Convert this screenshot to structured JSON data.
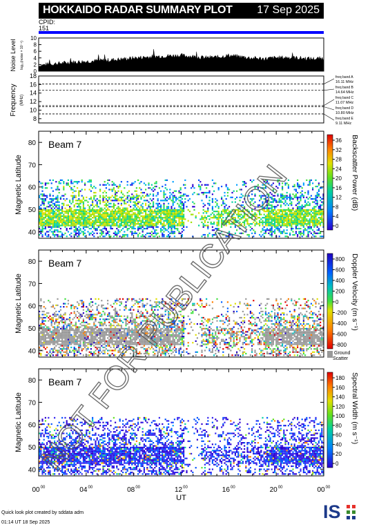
{
  "header": {
    "title": "HOKKAIDO RADAR SUMMARY PLOT",
    "date": "17 Sep 2025"
  },
  "cpid": {
    "label": "CPID:",
    "value": "151"
  },
  "footer": {
    "line1": "Quick look plot created by sddata adm",
    "line2": "01:14 UT 18 Sep 2025"
  },
  "watermark": "NOT FOR PUBLICATION",
  "logo_text": "ISEE",
  "colors": {
    "cpid_bar": "#0000ff",
    "ground_scatter": "#999999"
  },
  "chart_data": [
    {
      "type": "area",
      "name": "noise-panel",
      "ylabel": "Noise Level",
      "ylabel_sub": "log₁₀(noise × 10⁻⁴)",
      "yticks": [
        "10",
        "8",
        "6",
        "4",
        "2",
        "0"
      ],
      "ylim": [
        0,
        10
      ],
      "x_hours": [
        0,
        1,
        2,
        3,
        4,
        5,
        6,
        7,
        8,
        9,
        10,
        11,
        12,
        13,
        14,
        15,
        16,
        17,
        18,
        19,
        20,
        21,
        22,
        23,
        24
      ],
      "values": [
        1.6,
        2.0,
        2.3,
        2.6,
        2.8,
        3.0,
        3.2,
        3.5,
        3.8,
        4.1,
        4.3,
        4.5,
        4.6,
        4.3,
        3.9,
        4.1,
        4.6,
        4.2,
        3.8,
        3.6,
        3.9,
        4.0,
        3.8,
        3.6,
        3.7
      ]
    },
    {
      "type": "line",
      "name": "frequency-panel",
      "ylabel": "Frequency",
      "yunit": "(MHz)",
      "yticks": [
        "18",
        "16",
        "14",
        "12",
        "10",
        "8"
      ],
      "ylim": [
        7,
        18
      ],
      "bands": [
        {
          "name": "freq band A",
          "mhz": "16.11 MHz",
          "value": 16.11
        },
        {
          "name": "freq band B",
          "mhz": "14.64 MHz",
          "value": 14.64
        },
        {
          "name": "freq band C",
          "mhz": "11.07 MHz",
          "value": 11.07
        },
        {
          "name": "freq band D",
          "mhz": "10.80 MHz",
          "value": 10.8
        },
        {
          "name": "freq band E",
          "mhz": "9.11 MHz",
          "value": 9.11
        }
      ]
    },
    {
      "type": "heatmap",
      "name": "power-panel",
      "beam_label": "Beam  7",
      "ylabel": "Magnetic Latitude",
      "yticks": [
        "80",
        "70",
        "60",
        "50",
        "40"
      ],
      "ylim": [
        37,
        85
      ],
      "colorbar_label": "Backscatter Power (dB)",
      "colorbar_ticks": [
        "36",
        "32",
        "28",
        "24",
        "20",
        "16",
        "12",
        "8",
        "4",
        "0"
      ],
      "zlim": [
        0,
        40
      ]
    },
    {
      "type": "heatmap",
      "name": "velocity-panel",
      "beam_label": "Beam  7",
      "ylabel": "Magnetic Latitude",
      "yticks": [
        "80",
        "70",
        "60",
        "50",
        "40"
      ],
      "ylim": [
        37,
        85
      ],
      "colorbar_label": "Doppler Velocity (m s⁻¹)",
      "colorbar_ticks": [
        "800",
        "600",
        "400",
        "200",
        "0",
        "-200",
        "-400",
        "-600",
        "-800"
      ],
      "zlim": [
        -900,
        900
      ],
      "ground_scatter_label": [
        "Ground",
        "Scatter"
      ]
    },
    {
      "type": "heatmap",
      "name": "width-panel",
      "beam_label": "Beam  7",
      "ylabel": "Magnetic Latitude",
      "yticks": [
        "80",
        "70",
        "60",
        "50",
        "40"
      ],
      "ylim": [
        37,
        85
      ],
      "colorbar_label": "Spectral Width (m s⁻¹)",
      "colorbar_ticks": [
        "180",
        "160",
        "140",
        "120",
        "100",
        "80",
        "60",
        "40",
        "20",
        "0"
      ],
      "zlim": [
        0,
        190
      ],
      "xlabel": "UT",
      "xticks": [
        "00",
        "04",
        "08",
        "12",
        "16",
        "20",
        "00"
      ],
      "xtick_sup": "00"
    }
  ]
}
